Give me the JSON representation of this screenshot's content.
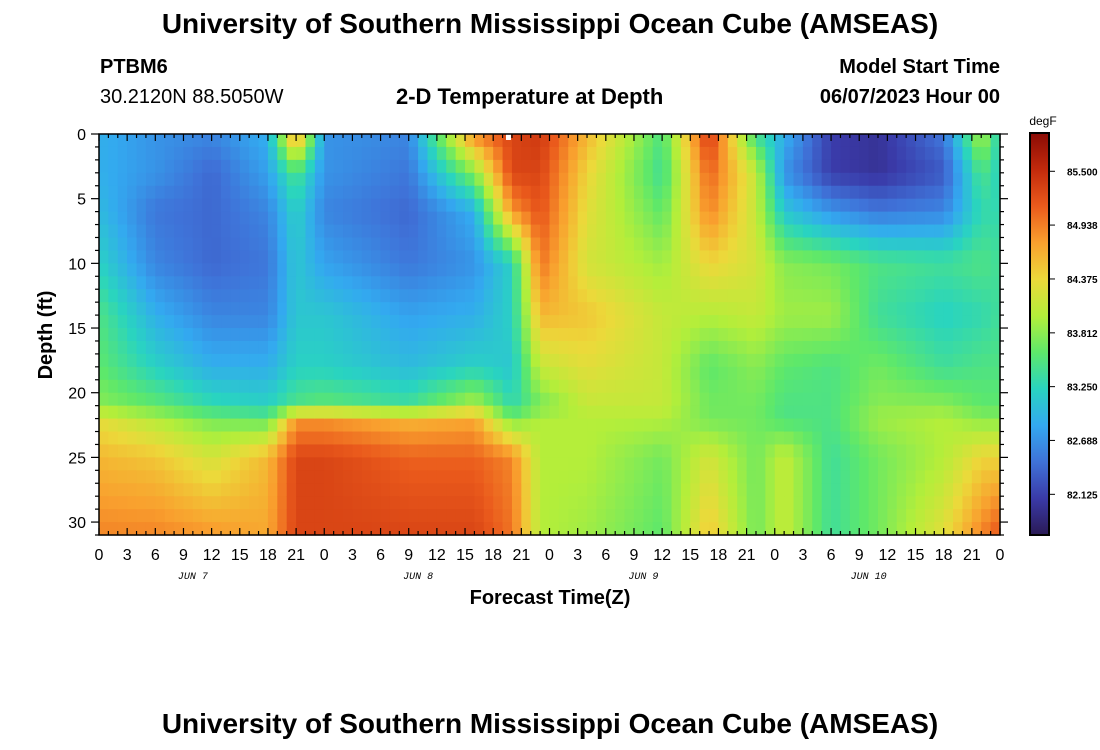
{
  "header": {
    "title": "University of Southern Mississippi Ocean Cube (AMSEAS)",
    "station": "PTBM6",
    "coords": "30.2120N  88.5050W",
    "subtitle": "2-D Temperature at Depth",
    "model_start_label": "Model Start Time",
    "model_start_value": "06/07/2023 Hour 00"
  },
  "footer": {
    "title": "University of Southern Mississippi Ocean Cube (AMSEAS)"
  },
  "colorbar": {
    "unit": "degF",
    "colors": [
      "#2a1a55",
      "#3a3aa8",
      "#3f72d8",
      "#33a9f0",
      "#29d4c0",
      "#5ee86a",
      "#b4ee3a",
      "#ecd93a",
      "#f9a02e",
      "#ea5a1c",
      "#c22a0c",
      "#8a0b05"
    ]
  },
  "chart_data": {
    "type": "heatmap",
    "title": "2-D Temperature at Depth",
    "xlabel": "Forecast Time(Z)",
    "ylabel": "Depth (ft)",
    "x_tick_labels": [
      "0",
      "3",
      "6",
      "9",
      "12",
      "15",
      "18",
      "21",
      "0",
      "3",
      "6",
      "9",
      "12",
      "15",
      "18",
      "21",
      "0",
      "3",
      "6",
      "9",
      "12",
      "15",
      "18",
      "21",
      "0",
      "3",
      "6",
      "9",
      "12",
      "15",
      "18",
      "21",
      "0"
    ],
    "day_labels": [
      "JUN 7",
      "JUN 8",
      "JUN 9",
      "JUN 10"
    ],
    "y_ticks": [
      0,
      5,
      10,
      15,
      20,
      25,
      30
    ],
    "ylim": [
      0,
      31
    ],
    "xlim_hours": [
      0,
      96
    ],
    "colorbar_ticks": [
      85.5,
      84.938,
      84.375,
      83.812,
      83.25,
      82.688,
      82.125
    ],
    "color_range": [
      81.7,
      85.9
    ],
    "time_nodes_hours": [
      0,
      6,
      12,
      18,
      21,
      24,
      33,
      40,
      44,
      47,
      52,
      60,
      65,
      70,
      73,
      78,
      83,
      90,
      94,
      96
    ],
    "depth_nodes_ft": [
      0,
      3,
      6,
      10,
      14,
      18,
      21,
      22,
      25,
      31
    ],
    "values": [
      [
        82.9,
        82.7,
        82.6,
        82.9,
        84.9,
        82.7,
        82.6,
        84.9,
        85.3,
        85.4,
        84.6,
        83.5,
        85.4,
        83.4,
        82.9,
        82.1,
        82.0,
        82.5,
        84.0,
        83.2
      ],
      [
        82.9,
        82.7,
        82.4,
        82.8,
        83.5,
        82.7,
        82.5,
        83.8,
        85.3,
        85.3,
        84.4,
        83.4,
        85.1,
        84.1,
        82.7,
        82.1,
        82.0,
        82.3,
        83.5,
        83.2
      ],
      [
        83.0,
        82.5,
        82.4,
        82.6,
        83.2,
        82.6,
        82.4,
        82.9,
        84.8,
        85.2,
        84.3,
        83.6,
        84.9,
        84.1,
        83.1,
        82.7,
        82.5,
        82.6,
        83.3,
        83.3
      ],
      [
        83.2,
        82.6,
        82.4,
        82.5,
        83.1,
        82.8,
        82.5,
        82.7,
        83.2,
        85.0,
        84.2,
        83.9,
        84.4,
        84.2,
        83.8,
        83.7,
        83.5,
        83.4,
        83.5,
        83.4
      ],
      [
        83.5,
        82.9,
        82.6,
        82.6,
        83.1,
        83.1,
        82.8,
        82.9,
        83.2,
        84.6,
        84.5,
        84.1,
        84.0,
        84.1,
        83.9,
        83.9,
        83.4,
        83.2,
        83.3,
        83.4
      ],
      [
        83.6,
        83.2,
        82.9,
        82.9,
        83.2,
        83.2,
        83.0,
        83.2,
        83.1,
        84.1,
        84.3,
        84.1,
        83.6,
        83.8,
        83.6,
        83.5,
        83.7,
        83.4,
        83.5,
        83.5
      ],
      [
        83.8,
        83.6,
        83.3,
        83.2,
        83.5,
        83.6,
        83.4,
        84.0,
        83.3,
        83.7,
        84.1,
        84.1,
        83.7,
        83.7,
        83.5,
        83.5,
        83.8,
        83.8,
        83.6,
        83.6
      ],
      [
        84.3,
        84.0,
        83.7,
        83.6,
        84.8,
        84.8,
        84.6,
        84.7,
        83.7,
        84.0,
        84.0,
        84.0,
        83.7,
        83.7,
        83.5,
        83.5,
        83.9,
        84.0,
        83.8,
        83.8
      ],
      [
        84.6,
        84.5,
        84.2,
        84.6,
        85.3,
        85.3,
        85.1,
        85.1,
        84.9,
        84.0,
        84.0,
        83.7,
        84.2,
        83.7,
        84.1,
        83.4,
        83.7,
        84.0,
        84.4,
        84.4
      ],
      [
        84.9,
        84.9,
        84.8,
        84.7,
        85.3,
        85.3,
        85.3,
        85.3,
        85.0,
        84.0,
        83.9,
        83.6,
        84.5,
        83.7,
        84.1,
        83.4,
        83.7,
        84.3,
        84.9,
        85.2
      ]
    ]
  }
}
